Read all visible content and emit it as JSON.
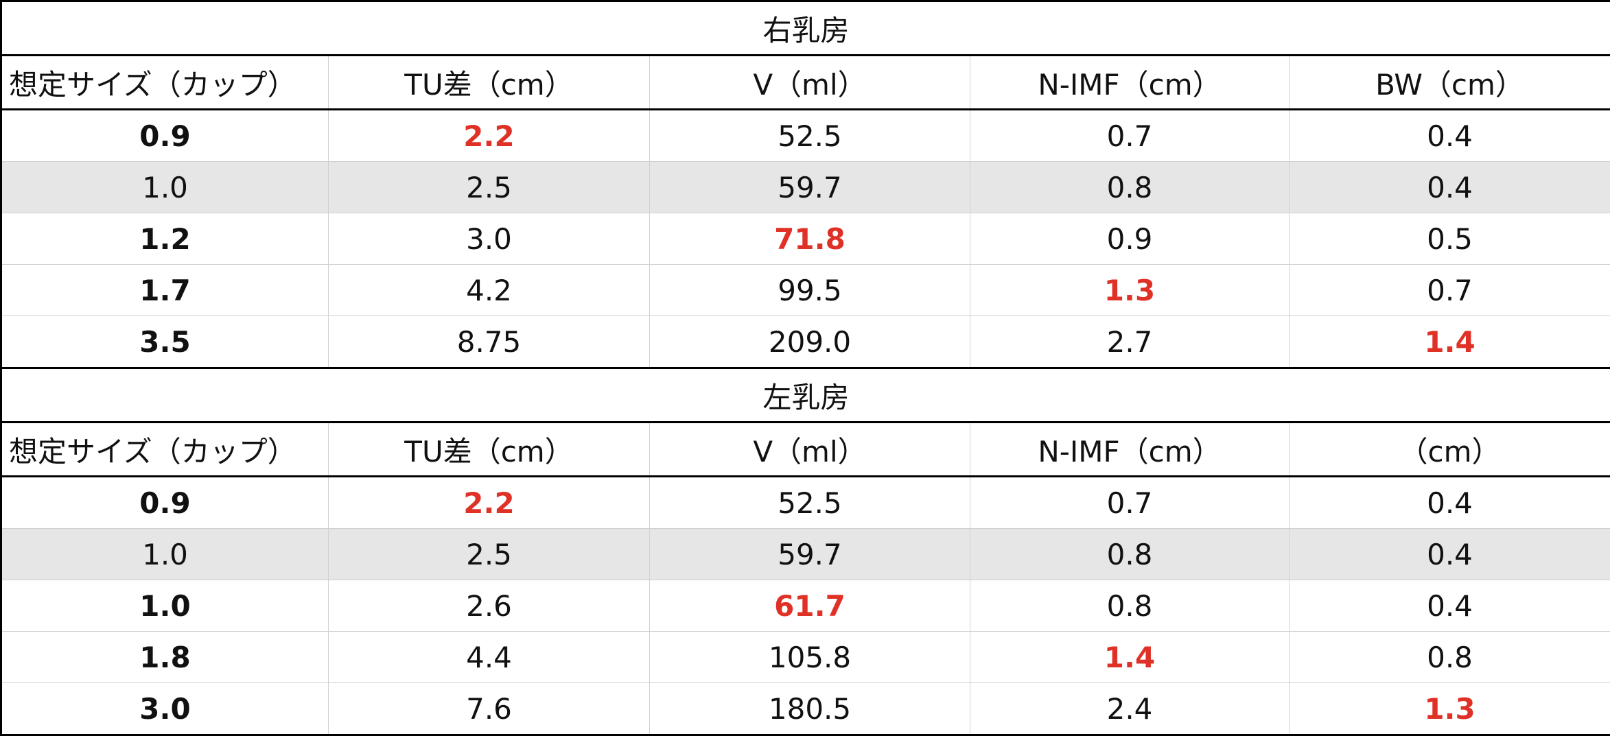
{
  "colors": {
    "highlight": "#e03127",
    "shaded_row": "#e6e6e6",
    "border": "#000000"
  },
  "right": {
    "title": "右乳房",
    "headers": [
      "想定サイズ（カップ）",
      "TU差（cm）",
      "V（ml）",
      "N-IMF（cm）",
      "BW（cm）"
    ],
    "rows": [
      [
        "0.9",
        "2.2",
        "52.5",
        "0.7",
        "0.4"
      ],
      [
        "1.0",
        "2.5",
        "59.7",
        "0.8",
        "0.4"
      ],
      [
        "1.2",
        "3.0",
        "71.8",
        "0.9",
        "0.5"
      ],
      [
        "1.7",
        "4.2",
        "99.5",
        "1.3",
        "0.7"
      ],
      [
        "3.5",
        "8.75",
        "209.0",
        "2.7",
        "1.4"
      ]
    ]
  },
  "left": {
    "title": "左乳房",
    "headers": [
      "想定サイズ（カップ）",
      "TU差（cm）",
      "V（ml）",
      "N-IMF（cm）",
      "（cm）"
    ],
    "rows": [
      [
        "0.9",
        "2.2",
        "52.5",
        "0.7",
        "0.4"
      ],
      [
        "1.0",
        "2.5",
        "59.7",
        "0.8",
        "0.4"
      ],
      [
        "1.0",
        "2.6",
        "61.7",
        "0.8",
        "0.4"
      ],
      [
        "1.8",
        "4.4",
        "105.8",
        "1.4",
        "0.8"
      ],
      [
        "3.0",
        "7.6",
        "180.5",
        "2.4",
        "1.3"
      ]
    ]
  }
}
